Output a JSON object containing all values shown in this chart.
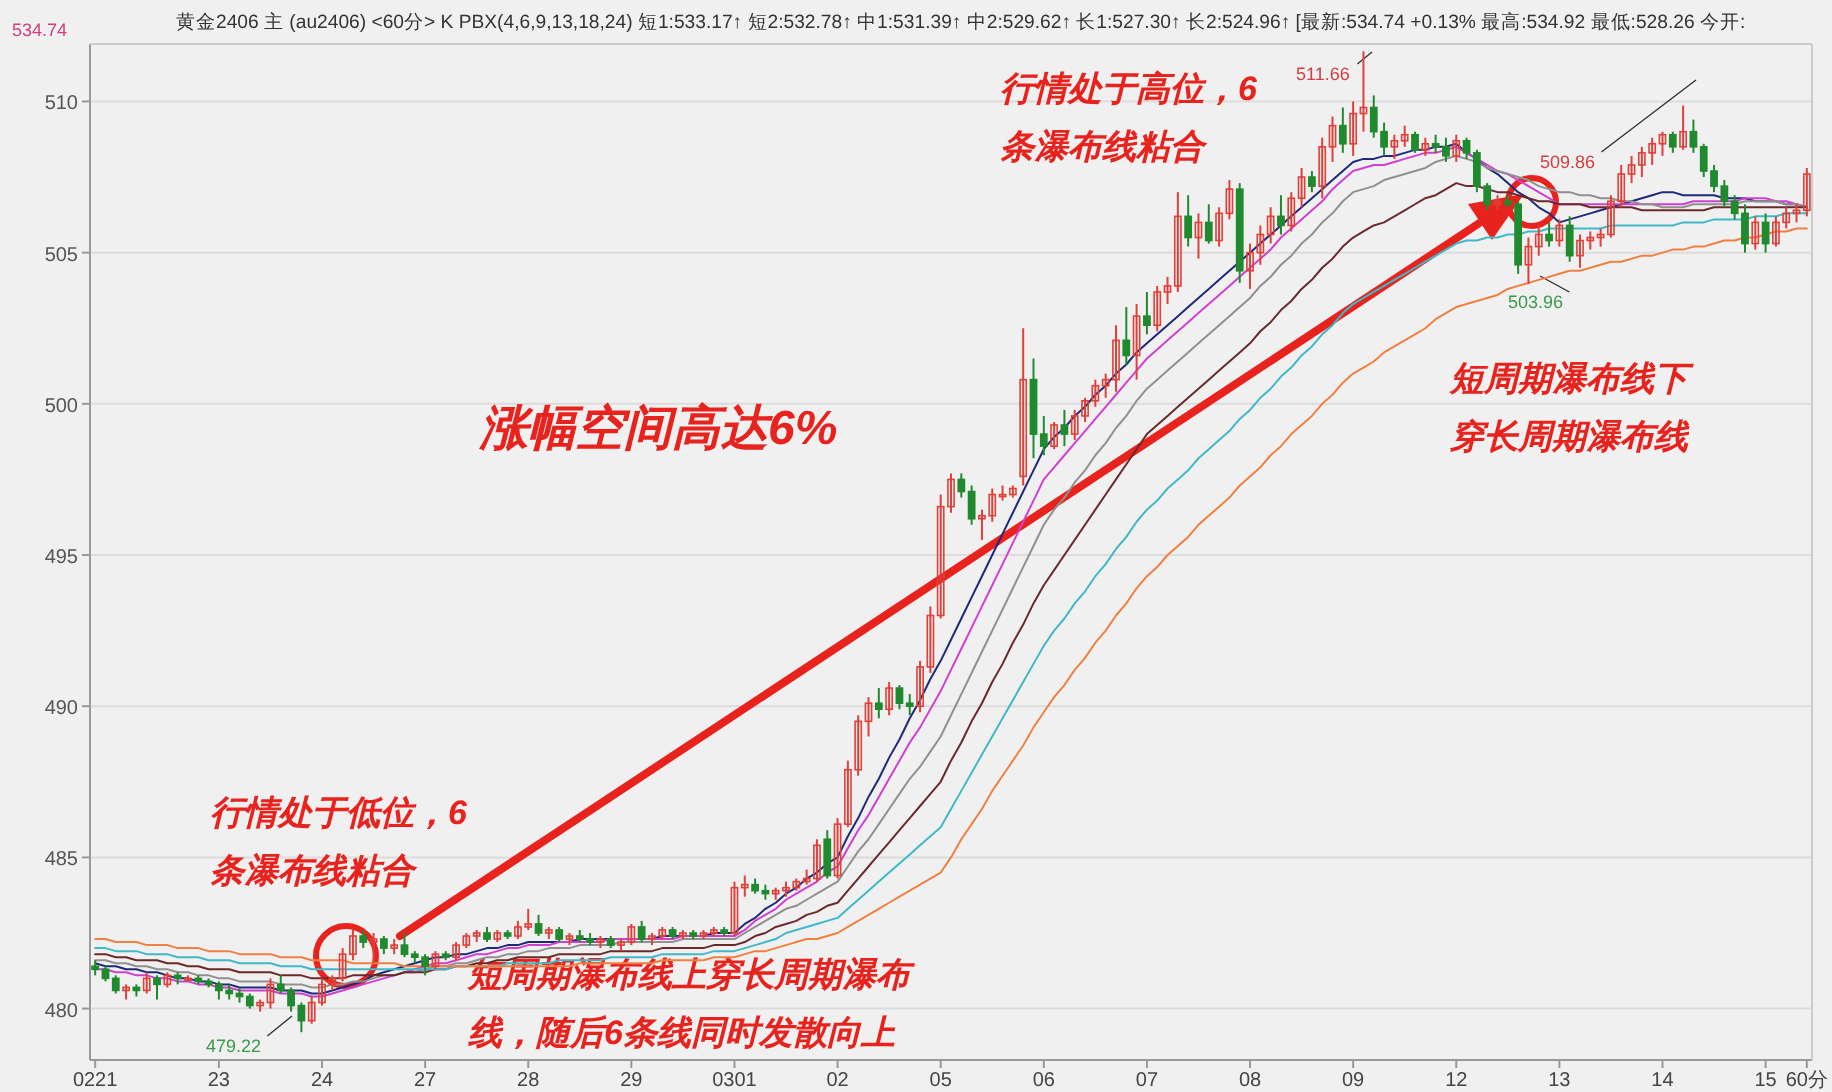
{
  "chart_data": {
    "type": "candlestick",
    "subtitle": "黄金2406 主 (au2406) <60分>  K PBX(4,6,9,13,18,24) 短1:533.17↑ 短2:532.78↑ 中1:531.39↑ 中2:529.62↑ 长1:527.30↑ 长2:524.96↑ [最新:534.74 +0.13% 最高:534.92 最低:528.26 今开:",
    "categories": [
      "0221",
      null,
      null,
      null,
      null,
      null,
      null,
      null,
      null,
      null,
      null,
      null,
      "23",
      null,
      null,
      null,
      null,
      null,
      null,
      null,
      null,
      null,
      "24",
      null,
      null,
      null,
      null,
      null,
      null,
      null,
      null,
      null,
      "27",
      null,
      null,
      null,
      null,
      null,
      null,
      null,
      null,
      null,
      "28",
      null,
      null,
      null,
      null,
      null,
      null,
      null,
      null,
      null,
      "29",
      null,
      null,
      null,
      null,
      null,
      null,
      null,
      null,
      null,
      "0301",
      null,
      null,
      null,
      null,
      null,
      null,
      null,
      null,
      null,
      "02",
      null,
      null,
      null,
      null,
      null,
      null,
      null,
      null,
      null,
      "05",
      null,
      null,
      null,
      null,
      null,
      null,
      null,
      null,
      null,
      "06",
      null,
      null,
      null,
      null,
      null,
      null,
      null,
      null,
      null,
      "07",
      null,
      null,
      null,
      null,
      null,
      null,
      null,
      null,
      null,
      "08",
      null,
      null,
      null,
      null,
      null,
      null,
      null,
      null,
      null,
      "09",
      null,
      null,
      null,
      null,
      null,
      null,
      null,
      null,
      null,
      "12",
      null,
      null,
      null,
      null,
      null,
      null,
      null,
      null,
      null,
      "13",
      null,
      null,
      null,
      null,
      null,
      null,
      null,
      null,
      null,
      "14",
      null,
      null,
      null,
      null,
      null,
      null,
      null,
      null,
      null,
      "15",
      null,
      null,
      null,
      "60分"
    ],
    "ohlc": [
      [
        481.4,
        481.6,
        481.1,
        481.3
      ],
      [
        481.3,
        481.4,
        480.9,
        481.0
      ],
      [
        481.0,
        481.1,
        480.5,
        480.6
      ],
      [
        480.6,
        480.8,
        480.3,
        480.7
      ],
      [
        480.7,
        480.8,
        480.4,
        480.6
      ],
      [
        480.6,
        481.2,
        480.5,
        481.0
      ],
      [
        481.0,
        481.1,
        480.3,
        480.8
      ],
      [
        480.8,
        481.2,
        480.7,
        481.1
      ],
      [
        481.1,
        481.2,
        480.8,
        481.0
      ],
      [
        481.0,
        481.1,
        480.9,
        481.0
      ],
      [
        481.0,
        481.1,
        480.8,
        480.9
      ],
      [
        480.9,
        481.0,
        480.7,
        480.8
      ],
      [
        480.8,
        480.9,
        480.3,
        480.6
      ],
      [
        480.6,
        480.8,
        480.3,
        480.5
      ],
      [
        480.5,
        480.7,
        480.2,
        480.4
      ],
      [
        480.4,
        480.5,
        480.0,
        480.1
      ],
      [
        480.1,
        480.3,
        479.9,
        480.2
      ],
      [
        480.2,
        481.0,
        480.0,
        480.8
      ],
      [
        480.8,
        481.1,
        480.5,
        480.6
      ],
      [
        480.6,
        480.7,
        479.9,
        480.1
      ],
      [
        480.1,
        480.2,
        479.22,
        479.6
      ],
      [
        479.6,
        480.4,
        479.5,
        480.2
      ],
      [
        480.2,
        481.0,
        480.1,
        480.8
      ],
      [
        480.8,
        481.1,
        480.6,
        481.0
      ],
      [
        481.0,
        482.0,
        480.9,
        481.8
      ],
      [
        481.8,
        482.6,
        481.6,
        482.4
      ],
      [
        482.4,
        482.6,
        482.0,
        482.2
      ],
      [
        482.2,
        482.5,
        481.5,
        482.3
      ],
      [
        482.3,
        482.4,
        481.8,
        482.0
      ],
      [
        482.0,
        482.3,
        481.8,
        482.1
      ],
      [
        482.1,
        482.5,
        481.7,
        481.8
      ],
      [
        481.8,
        481.9,
        481.5,
        481.7
      ],
      [
        481.7,
        481.8,
        481.1,
        481.4
      ],
      [
        481.4,
        481.9,
        481.3,
        481.8
      ],
      [
        481.8,
        481.9,
        481.6,
        481.7
      ],
      [
        481.7,
        482.2,
        481.6,
        482.1
      ],
      [
        482.1,
        482.5,
        482.0,
        482.4
      ],
      [
        482.4,
        482.6,
        482.2,
        482.5
      ],
      [
        482.5,
        482.7,
        482.2,
        482.3
      ],
      [
        482.3,
        482.6,
        482.2,
        482.5
      ],
      [
        482.5,
        482.6,
        482.3,
        482.4
      ],
      [
        482.4,
        482.9,
        482.3,
        482.7
      ],
      [
        482.7,
        483.3,
        482.6,
        482.8
      ],
      [
        482.8,
        483.1,
        482.4,
        482.5
      ],
      [
        482.5,
        482.7,
        482.3,
        482.6
      ],
      [
        482.6,
        482.7,
        482.2,
        482.3
      ],
      [
        482.3,
        482.5,
        482.1,
        482.4
      ],
      [
        482.4,
        482.6,
        482.2,
        482.3
      ],
      [
        482.3,
        482.5,
        482.1,
        482.2
      ],
      [
        482.2,
        482.4,
        482.0,
        482.3
      ],
      [
        482.3,
        482.4,
        482.0,
        482.1
      ],
      [
        482.1,
        482.3,
        481.9,
        482.2
      ],
      [
        482.2,
        482.8,
        482.1,
        482.7
      ],
      [
        482.7,
        482.9,
        482.2,
        482.3
      ],
      [
        482.3,
        482.5,
        482.1,
        482.4
      ],
      [
        482.4,
        482.7,
        482.3,
        482.6
      ],
      [
        482.6,
        482.7,
        482.3,
        482.4
      ],
      [
        482.4,
        482.6,
        482.3,
        482.5
      ],
      [
        482.5,
        482.6,
        482.3,
        482.4
      ],
      [
        482.4,
        482.6,
        482.3,
        482.5
      ],
      [
        482.5,
        482.7,
        482.4,
        482.6
      ],
      [
        482.6,
        482.7,
        482.4,
        482.5
      ],
      [
        482.5,
        484.2,
        482.4,
        484.0
      ],
      [
        484.0,
        484.4,
        483.7,
        484.1
      ],
      [
        484.1,
        484.3,
        483.8,
        483.9
      ],
      [
        483.9,
        484.1,
        483.6,
        483.8
      ],
      [
        483.8,
        484.0,
        483.6,
        483.9
      ],
      [
        483.9,
        484.2,
        483.7,
        484.0
      ],
      [
        484.0,
        484.3,
        483.9,
        484.2
      ],
      [
        484.2,
        484.6,
        484.1,
        484.3
      ],
      [
        484.3,
        485.6,
        484.2,
        485.4
      ],
      [
        485.6,
        485.9,
        484.3,
        484.4
      ],
      [
        484.4,
        486.3,
        484.3,
        486.1
      ],
      [
        486.1,
        488.2,
        486.0,
        487.9
      ],
      [
        487.9,
        489.7,
        487.7,
        489.5
      ],
      [
        489.5,
        490.3,
        489.0,
        490.1
      ],
      [
        490.1,
        490.6,
        489.6,
        489.9
      ],
      [
        489.9,
        490.8,
        489.7,
        490.6
      ],
      [
        490.6,
        490.7,
        489.9,
        490.1
      ],
      [
        490.1,
        490.4,
        489.7,
        490.0
      ],
      [
        490.0,
        491.5,
        489.8,
        491.3
      ],
      [
        491.3,
        493.3,
        491.1,
        493.0
      ],
      [
        493.0,
        497.0,
        492.9,
        496.6
      ],
      [
        496.6,
        497.7,
        496.4,
        497.5
      ],
      [
        497.5,
        497.7,
        496.9,
        497.1
      ],
      [
        497.1,
        497.3,
        496.0,
        496.2
      ],
      [
        496.2,
        496.5,
        495.5,
        496.3
      ],
      [
        496.3,
        497.2,
        496.1,
        497.0
      ],
      [
        497.0,
        497.3,
        496.8,
        497.0
      ],
      [
        497.0,
        497.3,
        496.9,
        497.2
      ],
      [
        497.6,
        502.5,
        497.3,
        500.8
      ],
      [
        500.8,
        501.5,
        498.2,
        499.0
      ],
      [
        499.0,
        499.6,
        498.3,
        498.6
      ],
      [
        498.6,
        499.4,
        498.5,
        499.3
      ],
      [
        499.3,
        499.8,
        498.6,
        499.0
      ],
      [
        499.0,
        499.8,
        498.8,
        499.6
      ],
      [
        499.6,
        500.2,
        499.4,
        500.1
      ],
      [
        500.1,
        500.8,
        499.9,
        500.6
      ],
      [
        500.6,
        501.0,
        500.2,
        500.8
      ],
      [
        500.8,
        502.6,
        500.4,
        502.1
      ],
      [
        502.1,
        503.2,
        501.3,
        501.6
      ],
      [
        501.6,
        503.3,
        500.8,
        502.9
      ],
      [
        502.9,
        503.7,
        502.3,
        502.6
      ],
      [
        502.6,
        503.9,
        502.4,
        503.7
      ],
      [
        503.7,
        504.2,
        503.3,
        503.9
      ],
      [
        503.9,
        507.0,
        503.7,
        506.2
      ],
      [
        506.2,
        506.9,
        505.2,
        505.5
      ],
      [
        505.5,
        506.3,
        504.8,
        506.0
      ],
      [
        506.0,
        506.6,
        505.3,
        505.4
      ],
      [
        505.4,
        506.5,
        505.2,
        506.3
      ],
      [
        506.3,
        507.4,
        506.1,
        507.1
      ],
      [
        507.1,
        507.3,
        504.0,
        504.4
      ],
      [
        504.4,
        505.3,
        503.8,
        505.0
      ],
      [
        505.0,
        505.9,
        504.6,
        505.6
      ],
      [
        505.6,
        506.5,
        505.3,
        506.2
      ],
      [
        506.2,
        506.9,
        505.6,
        505.9
      ],
      [
        505.9,
        507.0,
        505.7,
        506.8
      ],
      [
        506.8,
        507.8,
        506.5,
        507.5
      ],
      [
        507.5,
        507.7,
        507.0,
        507.2
      ],
      [
        507.2,
        508.8,
        506.8,
        508.5
      ],
      [
        508.5,
        509.5,
        508.0,
        509.2
      ],
      [
        509.2,
        509.8,
        508.3,
        508.6
      ],
      [
        508.6,
        510.0,
        508.2,
        509.6
      ],
      [
        509.6,
        511.66,
        509.0,
        509.8
      ],
      [
        509.8,
        510.2,
        508.8,
        509.0
      ],
      [
        509.0,
        509.3,
        508.2,
        508.5
      ],
      [
        508.5,
        508.9,
        508.1,
        508.7
      ],
      [
        508.7,
        509.2,
        508.5,
        508.9
      ],
      [
        508.9,
        509.0,
        508.3,
        508.4
      ],
      [
        508.4,
        508.8,
        508.2,
        508.6
      ],
      [
        508.6,
        508.9,
        508.3,
        508.5
      ],
      [
        508.5,
        508.8,
        508.0,
        508.2
      ],
      [
        508.2,
        508.9,
        508.0,
        508.7
      ],
      [
        508.7,
        508.8,
        508.1,
        508.3
      ],
      [
        508.3,
        508.4,
        507.0,
        507.2
      ],
      [
        507.2,
        507.3,
        506.4,
        506.6
      ],
      [
        506.6,
        506.9,
        506.4,
        506.7
      ],
      [
        506.7,
        506.9,
        506.5,
        506.6
      ],
      [
        506.6,
        506.7,
        504.3,
        504.6
      ],
      [
        504.6,
        505.5,
        503.96,
        505.2
      ],
      [
        505.2,
        505.9,
        504.9,
        505.6
      ],
      [
        505.6,
        506.0,
        505.2,
        505.4
      ],
      [
        505.4,
        506.1,
        505.2,
        505.9
      ],
      [
        505.9,
        506.2,
        504.7,
        504.9
      ],
      [
        504.9,
        505.6,
        504.5,
        505.4
      ],
      [
        505.4,
        505.7,
        505.1,
        505.5
      ],
      [
        505.5,
        505.8,
        505.2,
        505.6
      ],
      [
        505.6,
        506.9,
        505.5,
        506.7
      ],
      [
        506.7,
        507.9,
        506.5,
        507.6
      ],
      [
        507.6,
        508.2,
        507.3,
        507.9
      ],
      [
        507.9,
        508.5,
        507.5,
        508.3
      ],
      [
        508.3,
        508.8,
        507.9,
        508.6
      ],
      [
        508.6,
        509.0,
        508.2,
        508.9
      ],
      [
        508.9,
        509.0,
        508.3,
        508.5
      ],
      [
        508.5,
        509.86,
        508.4,
        509.0
      ],
      [
        509.0,
        509.4,
        508.3,
        508.5
      ],
      [
        508.5,
        508.6,
        507.5,
        507.7
      ],
      [
        507.7,
        507.9,
        507.0,
        507.2
      ],
      [
        507.2,
        507.4,
        506.5,
        506.7
      ],
      [
        506.7,
        506.9,
        506.1,
        506.3
      ],
      [
        506.3,
        506.6,
        505.0,
        505.3
      ],
      [
        505.3,
        506.2,
        505.1,
        506.0
      ],
      [
        506.0,
        506.3,
        505.0,
        505.3
      ],
      [
        505.3,
        506.2,
        505.2,
        506.0
      ],
      [
        506.0,
        506.5,
        505.8,
        506.3
      ],
      [
        506.3,
        506.6,
        506.0,
        506.4
      ],
      [
        506.4,
        507.8,
        506.2,
        507.6
      ]
    ],
    "series": [
      {
        "type": "line",
        "color": "#1f2a7a",
        "values": [
          481.5,
          481.4,
          481.4,
          481.3,
          481.3,
          481.2,
          481.2,
          481.1,
          481.0,
          481.0,
          480.9,
          480.9,
          480.8,
          480.8,
          480.7,
          480.7,
          480.7,
          480.7,
          480.6,
          480.6,
          480.6,
          480.5,
          480.5,
          480.6,
          480.7,
          480.8,
          480.9,
          481.1,
          481.2,
          481.3,
          481.4,
          481.5,
          481.6,
          481.7,
          481.7,
          481.8,
          481.8,
          481.9,
          482.0,
          482.0,
          482.1,
          482.1,
          482.2,
          482.2,
          482.2,
          482.2,
          482.2,
          482.3,
          482.3,
          482.3,
          482.3,
          482.3,
          482.3,
          482.3,
          482.3,
          482.4,
          482.4,
          482.4,
          482.4,
          482.4,
          482.5,
          482.5,
          482.5,
          482.8,
          483.0,
          483.3,
          483.5,
          483.8,
          484.0,
          484.3,
          484.5,
          484.8,
          485.0,
          485.7,
          486.3,
          487.0,
          487.6,
          488.3,
          488.9,
          489.6,
          490.2,
          490.9,
          491.5,
          492.2,
          492.9,
          493.6,
          494.3,
          495.0,
          495.7,
          496.4,
          497.1,
          497.8,
          498.5,
          498.9,
          499.2,
          499.6,
          499.9,
          500.3,
          500.6,
          501.0,
          501.3,
          501.7,
          502.0,
          502.3,
          502.6,
          502.9,
          503.2,
          503.5,
          503.8,
          504.1,
          504.4,
          504.7,
          505.0,
          505.3,
          505.6,
          505.9,
          506.2,
          506.5,
          506.8,
          507.1,
          507.4,
          507.7,
          508.0,
          508.1,
          508.1,
          508.2,
          508.2,
          508.3,
          508.4,
          508.4,
          508.5,
          508.5,
          508.6,
          508.3,
          508.1,
          507.8,
          507.6,
          507.3,
          507.0,
          506.8,
          506.5,
          506.3,
          506.0,
          506.1,
          506.2,
          506.3,
          506.4,
          506.5,
          506.6,
          506.7,
          506.8,
          506.9,
          507.0,
          507.0,
          506.9,
          506.9,
          506.9,
          506.9,
          506.8,
          506.8,
          506.8,
          506.7,
          506.7,
          506.7,
          506.6,
          506.6,
          506.5
        ]
      },
      {
        "type": "line",
        "color": "#d040d0",
        "values": [
          481.3,
          481.3,
          481.2,
          481.2,
          481.1,
          481.1,
          481.0,
          481.0,
          480.9,
          480.9,
          480.8,
          480.8,
          480.7,
          480.7,
          480.6,
          480.6,
          480.6,
          480.6,
          480.5,
          480.5,
          480.5,
          480.4,
          480.4,
          480.5,
          480.6,
          480.7,
          480.8,
          480.9,
          481.0,
          481.1,
          481.2,
          481.3,
          481.4,
          481.5,
          481.5,
          481.6,
          481.7,
          481.8,
          481.8,
          481.9,
          482.0,
          482.0,
          482.1,
          482.1,
          482.1,
          482.2,
          482.2,
          482.2,
          482.2,
          482.2,
          482.3,
          482.3,
          482.3,
          482.3,
          482.3,
          482.3,
          482.3,
          482.4,
          482.4,
          482.4,
          482.4,
          482.4,
          482.4,
          482.6,
          482.9,
          483.1,
          483.3,
          483.6,
          483.8,
          484.0,
          484.2,
          484.5,
          484.7,
          485.3,
          485.9,
          486.4,
          487.0,
          487.6,
          488.2,
          488.8,
          489.3,
          489.9,
          490.5,
          491.2,
          491.9,
          492.6,
          493.3,
          494.0,
          494.7,
          495.4,
          496.1,
          496.8,
          497.5,
          497.9,
          498.3,
          498.7,
          499.1,
          499.5,
          499.9,
          500.3,
          500.7,
          501.1,
          501.5,
          501.8,
          502.1,
          502.4,
          502.7,
          503.0,
          503.3,
          503.6,
          503.9,
          504.2,
          504.5,
          504.8,
          505.1,
          505.5,
          505.8,
          506.1,
          506.4,
          506.7,
          507.1,
          507.4,
          507.7,
          507.8,
          507.9,
          507.9,
          508.0,
          508.1,
          508.2,
          508.3,
          508.3,
          508.4,
          508.5,
          508.3,
          508.1,
          507.9,
          507.7,
          507.6,
          507.4,
          507.2,
          507.0,
          506.8,
          506.6,
          506.6,
          506.6,
          506.6,
          506.6,
          506.6,
          506.6,
          506.6,
          506.6,
          506.6,
          506.6,
          506.6,
          506.6,
          506.7,
          506.7,
          506.7,
          506.7,
          506.7,
          506.8,
          506.8,
          506.8,
          506.7,
          506.7,
          506.6,
          506.5
        ]
      },
      {
        "type": "line",
        "color": "#909090",
        "values": [
          481.6,
          481.6,
          481.5,
          481.5,
          481.4,
          481.4,
          481.3,
          481.3,
          481.2,
          481.2,
          481.1,
          481.1,
          481.0,
          481.0,
          480.9,
          480.9,
          480.9,
          480.9,
          480.8,
          480.8,
          480.8,
          480.7,
          480.7,
          480.8,
          480.8,
          480.9,
          480.9,
          481.0,
          481.1,
          481.1,
          481.2,
          481.2,
          481.3,
          481.4,
          481.4,
          481.5,
          481.5,
          481.6,
          481.7,
          481.7,
          481.8,
          481.8,
          481.9,
          481.9,
          482.0,
          482.0,
          482.0,
          482.1,
          482.1,
          482.1,
          482.1,
          482.2,
          482.2,
          482.2,
          482.2,
          482.2,
          482.2,
          482.3,
          482.3,
          482.3,
          482.3,
          482.3,
          482.3,
          482.5,
          482.7,
          482.9,
          483.1,
          483.3,
          483.4,
          483.6,
          483.8,
          484.0,
          484.2,
          484.7,
          485.2,
          485.6,
          486.1,
          486.6,
          487.1,
          487.6,
          488.0,
          488.5,
          489.0,
          489.7,
          490.4,
          491.1,
          491.8,
          492.5,
          493.2,
          493.9,
          494.6,
          495.3,
          496.0,
          496.5,
          496.9,
          497.4,
          497.8,
          498.3,
          498.7,
          499.2,
          499.6,
          500.1,
          500.5,
          500.8,
          501.1,
          501.4,
          501.7,
          502.0,
          502.3,
          502.6,
          502.9,
          503.2,
          503.5,
          503.9,
          504.2,
          504.6,
          504.9,
          505.3,
          505.6,
          506.0,
          506.3,
          506.7,
          507.0,
          507.1,
          507.2,
          507.4,
          507.5,
          507.6,
          507.7,
          507.8,
          508.0,
          508.1,
          508.2,
          508.1,
          508.0,
          507.8,
          507.7,
          507.6,
          507.5,
          507.4,
          507.2,
          507.1,
          507.0,
          507.0,
          506.9,
          506.9,
          506.8,
          506.8,
          506.7,
          506.7,
          506.6,
          506.6,
          506.5,
          506.5,
          506.5,
          506.6,
          506.6,
          506.6,
          506.6,
          506.6,
          506.7,
          506.7,
          506.7,
          506.7,
          506.6,
          506.6,
          506.5
        ]
      },
      {
        "type": "line",
        "color": "#6b2a2a",
        "values": [
          481.8,
          481.8,
          481.7,
          481.7,
          481.6,
          481.6,
          481.6,
          481.5,
          481.5,
          481.4,
          481.4,
          481.3,
          481.3,
          481.3,
          481.2,
          481.2,
          481.2,
          481.2,
          481.1,
          481.1,
          481.1,
          481.0,
          481.0,
          481.0,
          481.0,
          481.1,
          481.1,
          481.1,
          481.1,
          481.1,
          481.2,
          481.2,
          481.2,
          481.3,
          481.3,
          481.4,
          481.4,
          481.5,
          481.5,
          481.6,
          481.6,
          481.7,
          481.7,
          481.7,
          481.7,
          481.8,
          481.8,
          481.8,
          481.8,
          481.8,
          481.9,
          481.9,
          481.9,
          481.9,
          481.9,
          482.0,
          482.0,
          482.0,
          482.0,
          482.0,
          482.1,
          482.1,
          482.1,
          482.2,
          482.4,
          482.5,
          482.7,
          482.8,
          482.9,
          483.1,
          483.2,
          483.4,
          483.5,
          483.9,
          484.3,
          484.7,
          485.1,
          485.5,
          485.9,
          486.3,
          486.7,
          487.1,
          487.5,
          488.2,
          488.8,
          489.5,
          490.1,
          490.8,
          491.4,
          492.1,
          492.7,
          493.4,
          494.0,
          494.5,
          495.0,
          495.5,
          496.0,
          496.5,
          497.0,
          497.5,
          498.0,
          498.5,
          499.0,
          499.3,
          499.6,
          499.9,
          500.2,
          500.5,
          500.8,
          501.1,
          501.4,
          501.7,
          502.0,
          502.4,
          502.7,
          503.1,
          503.4,
          503.8,
          504.1,
          504.5,
          504.8,
          505.2,
          505.5,
          505.7,
          505.9,
          506.0,
          506.2,
          506.4,
          506.6,
          506.8,
          506.9,
          507.1,
          507.3,
          507.2,
          507.2,
          507.1,
          507.0,
          507.0,
          506.9,
          506.8,
          506.7,
          506.7,
          506.6,
          506.6,
          506.6,
          506.5,
          506.5,
          506.5,
          506.5,
          506.5,
          506.4,
          506.4,
          506.4,
          506.4,
          506.4,
          506.4,
          506.4,
          506.5,
          506.5,
          506.5,
          506.5,
          506.5,
          506.5,
          506.5,
          506.5,
          506.5,
          506.5
        ]
      },
      {
        "type": "line",
        "color": "#40b8c8",
        "values": [
          482.0,
          482.0,
          481.9,
          481.9,
          481.9,
          481.8,
          481.8,
          481.8,
          481.7,
          481.7,
          481.7,
          481.6,
          481.6,
          481.6,
          481.5,
          481.5,
          481.5,
          481.5,
          481.4,
          481.4,
          481.4,
          481.3,
          481.3,
          481.3,
          481.3,
          481.3,
          481.3,
          481.3,
          481.3,
          481.3,
          481.3,
          481.3,
          481.3,
          481.3,
          481.3,
          481.4,
          481.4,
          481.4,
          481.4,
          481.4,
          481.5,
          481.5,
          481.5,
          481.5,
          481.5,
          481.6,
          481.6,
          481.6,
          481.6,
          481.6,
          481.7,
          481.7,
          481.7,
          481.7,
          481.7,
          481.8,
          481.8,
          481.8,
          481.8,
          481.8,
          481.9,
          481.9,
          481.9,
          482.0,
          482.1,
          482.2,
          482.3,
          482.5,
          482.6,
          482.7,
          482.8,
          482.9,
          483.0,
          483.3,
          483.6,
          483.9,
          484.2,
          484.5,
          484.8,
          485.1,
          485.4,
          485.7,
          486.0,
          486.6,
          487.2,
          487.8,
          488.4,
          489.0,
          489.6,
          490.2,
          490.8,
          491.4,
          492.0,
          492.5,
          492.9,
          493.4,
          493.8,
          494.3,
          494.7,
          495.2,
          495.6,
          496.1,
          496.5,
          496.8,
          497.2,
          497.5,
          497.8,
          498.2,
          498.5,
          498.8,
          499.1,
          499.5,
          499.8,
          500.2,
          500.5,
          500.9,
          501.2,
          501.6,
          501.9,
          502.3,
          502.6,
          503.0,
          503.3,
          503.5,
          503.7,
          503.9,
          504.1,
          504.3,
          504.5,
          504.7,
          504.9,
          505.1,
          505.3,
          505.4,
          505.4,
          505.5,
          505.5,
          505.6,
          505.6,
          505.7,
          505.7,
          505.8,
          505.8,
          505.8,
          505.8,
          505.8,
          505.8,
          505.9,
          505.9,
          505.9,
          505.9,
          505.9,
          505.9,
          505.9,
          506.0,
          506.0,
          506.0,
          506.1,
          506.1,
          506.1,
          506.1,
          506.2,
          506.2,
          506.2,
          506.3,
          506.3,
          506.3
        ]
      },
      {
        "type": "line",
        "color": "#f08040",
        "values": [
          482.3,
          482.3,
          482.2,
          482.2,
          482.2,
          482.1,
          482.1,
          482.1,
          482.0,
          482.0,
          482.0,
          481.9,
          481.9,
          481.9,
          481.8,
          481.8,
          481.8,
          481.8,
          481.7,
          481.7,
          481.7,
          481.6,
          481.6,
          481.6,
          481.6,
          481.5,
          481.5,
          481.5,
          481.5,
          481.5,
          481.4,
          481.4,
          481.4,
          481.4,
          481.4,
          481.4,
          481.4,
          481.4,
          481.4,
          481.4,
          481.4,
          481.4,
          481.4,
          481.4,
          481.4,
          481.4,
          481.4,
          481.5,
          481.5,
          481.5,
          481.5,
          481.5,
          481.5,
          481.5,
          481.5,
          481.6,
          481.6,
          481.6,
          481.6,
          481.6,
          481.7,
          481.7,
          481.7,
          481.8,
          481.9,
          481.9,
          482.0,
          482.1,
          482.2,
          482.3,
          482.3,
          482.4,
          482.5,
          482.7,
          482.9,
          483.1,
          483.3,
          483.5,
          483.7,
          483.9,
          484.1,
          484.3,
          484.5,
          485.0,
          485.6,
          486.1,
          486.6,
          487.2,
          487.7,
          488.2,
          488.7,
          489.3,
          489.8,
          490.3,
          490.7,
          491.2,
          491.6,
          492.1,
          492.5,
          493.0,
          493.4,
          493.9,
          494.3,
          494.6,
          495.0,
          495.3,
          495.6,
          496.0,
          496.3,
          496.6,
          496.9,
          497.3,
          497.6,
          497.9,
          498.3,
          498.6,
          499.0,
          499.3,
          499.6,
          500.0,
          500.3,
          500.7,
          501.0,
          501.2,
          501.4,
          501.7,
          501.9,
          502.1,
          502.3,
          502.5,
          502.8,
          503.0,
          503.2,
          503.3,
          503.4,
          503.5,
          503.6,
          503.8,
          503.9,
          504.0,
          504.1,
          504.2,
          504.3,
          504.4,
          504.4,
          504.5,
          504.6,
          504.7,
          504.7,
          504.8,
          504.9,
          504.9,
          505.0,
          505.1,
          505.1,
          505.2,
          505.2,
          505.3,
          505.4,
          505.4,
          505.5,
          505.5,
          505.6,
          505.7,
          505.7,
          505.8,
          505.8
        ]
      }
    ],
    "ylim": [
      478.3,
      511.9
    ],
    "yticks": [
      480,
      485,
      490,
      495,
      500,
      505,
      510
    ],
    "grid": "y",
    "annotations": [
      "涨幅空间高达6%",
      "行情处于低位，6条瀑布线粘合",
      "短周期瀑布线上穿长周期瀑布线，随后6条线同时发散向上",
      "行情处于高位，6条瀑布线粘合",
      "短周期瀑布线下穿长周期瀑布线",
      "511.66",
      "509.86",
      "503.96",
      "479.22",
      "534.74"
    ]
  }
}
